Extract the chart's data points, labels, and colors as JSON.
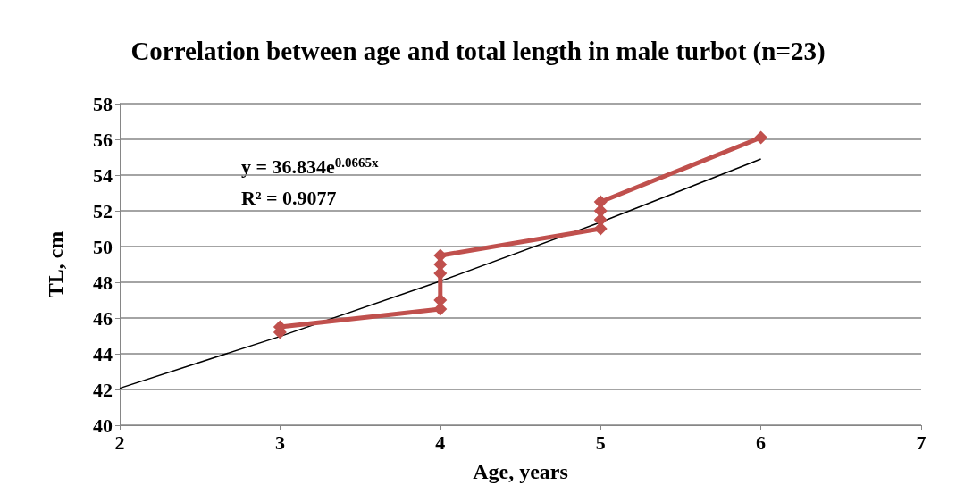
{
  "chart_data": {
    "type": "line",
    "title": "Correlation between age and total length in male turbot (n=23)",
    "xlabel": "Age, years",
    "ylabel": "TL, cm",
    "xlim": [
      2,
      7
    ],
    "xticks": [
      2,
      3,
      4,
      5,
      6,
      7
    ],
    "ylim": [
      40,
      58
    ],
    "yticks": [
      40,
      42,
      44,
      46,
      48,
      50,
      52,
      54,
      56,
      58
    ],
    "grid": "y",
    "marker": "diamond",
    "series": [
      {
        "color": "#c0504d",
        "x": [
          3,
          3,
          4,
          4,
          4,
          4,
          4,
          5,
          5,
          5,
          5,
          6
        ],
        "values": [
          45.2,
          45.5,
          46.5,
          47,
          48.5,
          49,
          49.5,
          51,
          51.5,
          52,
          52.5,
          56.1
        ]
      },
      {
        "type": "line",
        "marker": "none",
        "color": "#000000",
        "x": [
          2,
          3,
          4,
          5,
          6
        ],
        "values": [
          42.07,
          44.97,
          48.06,
          51.36,
          54.9
        ]
      }
    ],
    "annotations": [
      "y = 36.834e$^{0.0665x}$",
      "R² = 0.9077"
    ]
  }
}
